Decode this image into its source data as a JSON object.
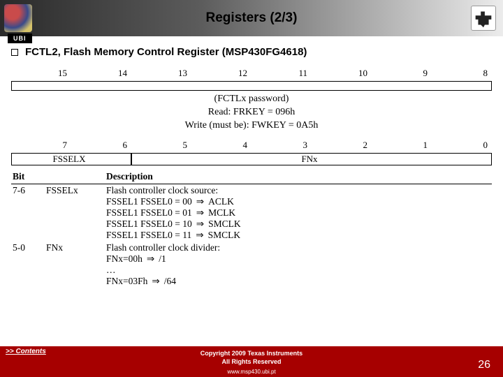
{
  "header": {
    "title": "Registers (2/3)",
    "ubi": "UBI"
  },
  "section": {
    "heading": "FCTL2, Flash Memory Control Register (MSP430FG4618)"
  },
  "regA": {
    "bits": [
      "15",
      "14",
      "13",
      "12",
      "11",
      "10",
      "9",
      "8"
    ],
    "pw_title": "(FCTLx password)",
    "pw_read": "Read: FRKEY = 096h",
    "pw_write": "Write (must be): FWKEY = 0A5h"
  },
  "regB": {
    "bits": [
      "7",
      "6",
      "5",
      "4",
      "3",
      "2",
      "1",
      "0"
    ],
    "fields": {
      "fsselx": "FSSELX",
      "fnx": "FNx"
    }
  },
  "desc": {
    "cols": [
      "Bit",
      "",
      "Description"
    ],
    "rows": [
      {
        "bit": "7-6",
        "name": "FSSELx",
        "lead": "Flash controller clock source:",
        "lines": [
          {
            "l": "FSSEL1 FSSEL0 = 00",
            "r": "ACLK"
          },
          {
            "l": "FSSEL1 FSSEL0 = 01",
            "r": "MCLK"
          },
          {
            "l": "FSSEL1 FSSEL0 = 10",
            "r": "SMCLK"
          },
          {
            "l": "FSSEL1 FSSEL0 = 11",
            "r": "SMCLK"
          }
        ]
      },
      {
        "bit": "5-0",
        "name": "FNx",
        "lead": "Flash controller clock divider:",
        "lines": [
          {
            "l": "FNx=00h",
            "r": "/1"
          },
          {
            "l": "…",
            "r": ""
          },
          {
            "l": "FNx=03Fh",
            "r": "/64"
          }
        ]
      }
    ]
  },
  "footer": {
    "contents": ">> Contents",
    "line1": "Copyright  2009 Texas Instruments",
    "line2": "All Rights Reserved",
    "line3": "www.msp430.ubi.pt",
    "page": "26"
  }
}
